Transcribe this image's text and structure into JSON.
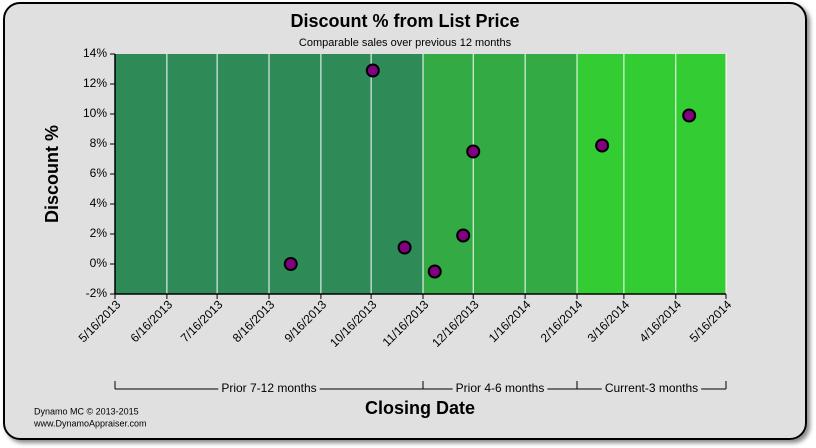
{
  "chart_data": {
    "type": "scatter",
    "title": "Discount % from List Price",
    "subtitle": "Comparable sales over previous 12 months",
    "y_label": "Discount %",
    "x_label": "Closing Date",
    "x": [
      "2013-08-29",
      "2013-10-17",
      "2013-11-05",
      "2013-11-23",
      "2013-12-10",
      "2013-12-16",
      "2014-03-03",
      "2014-04-24"
    ],
    "values": [
      0,
      12.9,
      1.1,
      -0.5,
      1.9,
      7.5,
      7.9,
      9.9
    ],
    "color": "#800080",
    "xlim": [
      "2013-05-16",
      "2014-05-16"
    ],
    "xticks": [
      {
        "value": "2013-05-16",
        "label": "5/16/2013"
      },
      {
        "value": "2013-06-16",
        "label": "6/16/2013"
      },
      {
        "value": "2013-07-16",
        "label": "7/16/2013"
      },
      {
        "value": "2013-08-16",
        "label": "8/16/2013"
      },
      {
        "value": "2013-09-16",
        "label": "9/16/2013"
      },
      {
        "value": "2013-10-16",
        "label": "10/16/2013"
      },
      {
        "value": "2013-11-16",
        "label": "11/16/2013"
      },
      {
        "value": "2013-12-16",
        "label": "12/16/2013"
      },
      {
        "value": "2014-01-16",
        "label": "1/16/2014"
      },
      {
        "value": "2014-02-16",
        "label": "2/16/2014"
      },
      {
        "value": "2014-03-16",
        "label": "3/16/2014"
      },
      {
        "value": "2014-04-16",
        "label": "4/16/2014"
      },
      {
        "value": "2014-05-16",
        "label": "5/16/2014"
      }
    ],
    "ylim": [
      -2,
      14
    ],
    "yticks": [
      {
        "value": -2,
        "label": "-2%"
      },
      {
        "value": 0,
        "label": "0%"
      },
      {
        "value": 2,
        "label": "2%"
      },
      {
        "value": 4,
        "label": "4%"
      },
      {
        "value": 6,
        "label": "6%"
      },
      {
        "value": 8,
        "label": "8%"
      },
      {
        "value": 10,
        "label": "10%"
      },
      {
        "value": 12,
        "label": "12%"
      },
      {
        "value": 14,
        "label": "14%"
      }
    ],
    "grid": true,
    "regions": [
      {
        "label": "Prior 7-12 months",
        "start": "2013-05-16",
        "end": "2013-11-16",
        "color": "#2e8b57"
      },
      {
        "label": "Prior 4-6 months",
        "start": "2013-11-16",
        "end": "2014-02-16",
        "color": "#33aa44"
      },
      {
        "label": "Current-3 months",
        "start": "2014-02-16",
        "end": "2014-05-16",
        "color": "#33cc33"
      }
    ],
    "footer": [
      "Dynamo MC   © 2013-2015",
      "www.DynamoAppraiser.com"
    ]
  }
}
